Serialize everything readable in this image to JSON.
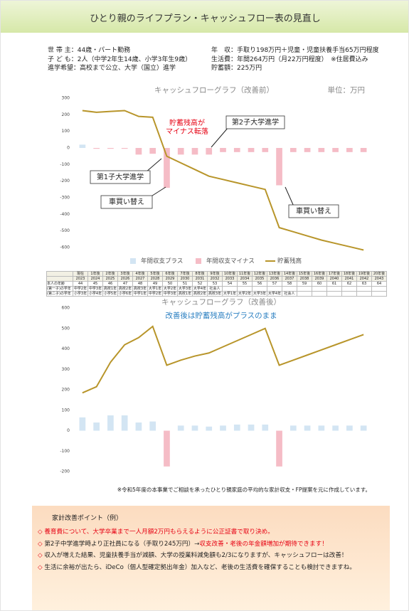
{
  "header": {
    "title": "ひとり親のライフプラン・キャッシュフロー表の見直し"
  },
  "info": {
    "left": [
      "世 帯 主：44歳・パート勤務",
      "子 ど も：2人（中学2年生14歳、小学3年生9歳）",
      "進学希望：高校まで公立、大学（国立）進学"
    ],
    "right": [
      "年　収：手取り198万円＋児童・児童扶養手当65万円程度",
      "生活費：年間264万円（月22万円程度）　※住居費込み",
      "貯蓄額：225万円"
    ]
  },
  "chart_data": [
    {
      "type": "bar-line",
      "title": "キャッシュフローグラフ（改善前）",
      "unit": "単位：万円",
      "ylim": [
        -600,
        300
      ],
      "yticks": [
        -600,
        -500,
        -400,
        -300,
        -200,
        -100,
        0,
        100,
        200,
        300
      ],
      "legend": "bottom",
      "series": [
        {
          "name": "年間収支プラス",
          "type": "bar",
          "color": "#d3e5f3",
          "values": [
            20,
            null,
            null,
            null,
            null,
            null,
            null,
            null,
            null,
            null,
            null,
            null,
            null,
            null,
            null,
            null,
            null,
            null,
            null,
            null,
            null
          ]
        },
        {
          "name": "年間収支マイナス",
          "type": "bar",
          "color": "#f5bcc6",
          "values": [
            null,
            -5,
            -5,
            -5,
            -40,
            -35,
            -240,
            -40,
            -40,
            -40,
            -25,
            -25,
            -25,
            -25,
            -225,
            -25,
            -25,
            -25,
            -25,
            -25,
            -25
          ]
        },
        {
          "name": "貯蓄残高",
          "type": "line",
          "color": "#b8952a",
          "values": [
            225,
            215,
            220,
            225,
            190,
            185,
            -50,
            -90,
            -130,
            -170,
            -190,
            -210,
            -230,
            -250,
            -480,
            -505,
            -530,
            -555,
            -575,
            -595,
            -615
          ]
        }
      ],
      "annotations": [
        {
          "lines": [
            "貯蓄残高が",
            "マイナス転落"
          ],
          "color": "#e60012"
        },
        {
          "lines": [
            "第2子大学進学"
          ]
        },
        {
          "lines": [
            "第1子大学進学"
          ]
        },
        {
          "lines": [
            "車買い替え"
          ]
        },
        {
          "lines": [
            "車買い替え"
          ]
        }
      ]
    },
    {
      "type": "bar-line",
      "title": "キャッシュフローグラフ（改善後）",
      "subtitle": "改善後は貯蓄残高がプラスのまま",
      "subtitle_color": "#2a7fc1",
      "ylim": [
        -200,
        600
      ],
      "yticks": [
        -200,
        -100,
        0,
        100,
        200,
        300,
        400,
        500,
        600
      ],
      "series": [
        {
          "type": "bar",
          "color": "#d3e5f3",
          "values": [
            65,
            40,
            75,
            75,
            40,
            45,
            null,
            25,
            25,
            20,
            25,
            30,
            30,
            30,
            null,
            25,
            25,
            25,
            25,
            25,
            25
          ]
        },
        {
          "type": "bar",
          "color": "#f5bcc6",
          "values": [
            null,
            null,
            null,
            null,
            null,
            null,
            -175,
            null,
            null,
            null,
            null,
            null,
            null,
            null,
            -175,
            null,
            null,
            null,
            null,
            null,
            null
          ]
        },
        {
          "type": "line",
          "color": "#b8952a",
          "values": [
            185,
            215,
            335,
            420,
            455,
            510,
            320,
            345,
            365,
            380,
            410,
            440,
            470,
            500,
            320,
            345,
            370,
            395,
            420,
            445,
            470
          ]
        }
      ]
    }
  ],
  "table": {
    "header": [
      "現在",
      "1年後",
      "2年後",
      "3年後",
      "4年後",
      "5年後",
      "6年後",
      "7年後",
      "8年後",
      "9年後",
      "10年後",
      "11年後",
      "12年後",
      "13年後",
      "14年後",
      "15年後",
      "16年後",
      "17年後",
      "18年後",
      "19年後",
      "20年後"
    ],
    "years": [
      "2023",
      "2024",
      "2025",
      "2026",
      "2027",
      "2028",
      "2029",
      "2030",
      "2031",
      "2032",
      "2033",
      "2034",
      "2035",
      "2036",
      "2037",
      "2038",
      "2039",
      "2040",
      "2041",
      "2042",
      "2043"
    ],
    "rows": [
      {
        "label": "本人の年齢",
        "cells": [
          "44",
          "45",
          "46",
          "47",
          "48",
          "49",
          "50",
          "51",
          "52",
          "53",
          "54",
          "55",
          "56",
          "57",
          "58",
          "59",
          "60",
          "61",
          "62",
          "63",
          "64"
        ]
      },
      {
        "label": "(第一子)の学年",
        "cells": [
          "中学2年",
          "中学3年",
          "高校1年",
          "高校2年",
          "高校3年",
          "大学1年",
          "大学2年",
          "大学3年",
          "大学4年",
          "社会人"
        ]
      },
      {
        "label": "(第二子)の学年",
        "cells": [
          "小学3年",
          "小学4年",
          "小学5年",
          "小学6年",
          "中学1年",
          "中学2年",
          "中学3年",
          "高校1年",
          "高校2年",
          "高校3年",
          "大学1年",
          "大学2年",
          "大学3年",
          "大学4年",
          "社会人"
        ]
      }
    ]
  },
  "note": "※令和5年度の本事業でご相談を承ったひとり親家庭の平均的な家計収支・FP提案を元に作成しています。",
  "points": {
    "title": "家計改善ポイント（例）",
    "items": [
      {
        "parts": [
          {
            "text": "◇ 養育費について、大学卒業まで一人月額2万円もらえるように公正証書で取り決め。",
            "color": "#e60012"
          }
        ]
      },
      {
        "parts": [
          {
            "text": "◇",
            "color": "#e60012"
          },
          {
            "text": " 第2子中学進学時より正社員になる（手取り245万円）→"
          },
          {
            "text": "収支改善・老後の年金額増加が期待できます！",
            "color": "#e60012"
          }
        ]
      },
      {
        "parts": [
          {
            "text": "◇",
            "color": "#e60012"
          },
          {
            "text": " 収入が増えた結果、児童扶養手当が減額、大学の授業料減免額も2/3になりますが、キャッシュフローは改善！"
          }
        ]
      },
      {
        "parts": [
          {
            "text": "◇",
            "color": "#e60012"
          },
          {
            "text": " 生活に余裕が出たら、iDeCo（個人型確定拠出年金）加入など、老後の生活費を確保することも検討できますね。"
          }
        ]
      }
    ]
  }
}
